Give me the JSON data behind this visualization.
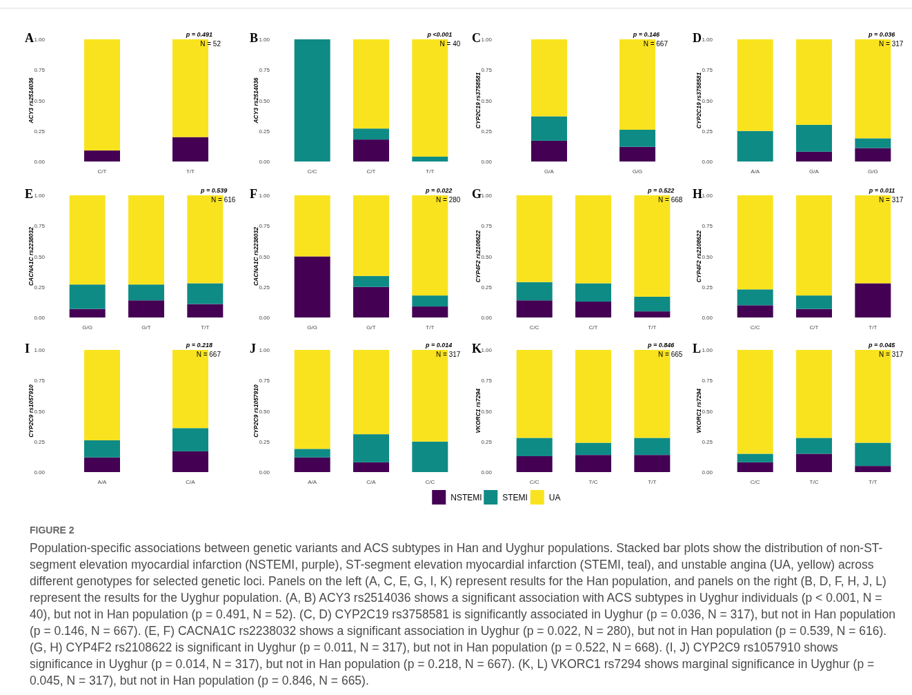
{
  "chart_data": [
    {
      "type": "bar",
      "title": "A",
      "ylabel": "ACY3 rs2514036",
      "categories": [
        "C/T",
        "T/T"
      ],
      "stacked": true,
      "ylim": [
        0,
        1
      ],
      "yticks": [
        {
          "value": 0,
          "label": "0.00"
        },
        {
          "value": 0.25,
          "label": "0.25"
        },
        {
          "value": 0.5,
          "label": "0.50"
        },
        {
          "value": 0.75,
          "label": "0.75"
        },
        {
          "value": 1,
          "label": "1.00"
        }
      ],
      "annotations": [
        "p = 0.491",
        "N = 52"
      ],
      "series": [
        {
          "color": "#440154",
          "values": [
            0.09,
            0.2
          ]
        },
        {
          "color": "#0f8b86",
          "values": [
            0,
            0
          ]
        },
        {
          "color": "#f9e31f",
          "values": [
            0.91,
            0.8
          ]
        }
      ]
    },
    {
      "type": "bar",
      "title": "B",
      "ylabel": "ACY3 rs2514036",
      "categories": [
        "C/C",
        "C/T",
        "T/T"
      ],
      "stacked": true,
      "ylim": [
        0,
        1
      ],
      "yticks": [
        {
          "value": 0,
          "label": "0.00"
        },
        {
          "value": 0.25,
          "label": "0.25"
        },
        {
          "value": 0.5,
          "label": "0.50"
        },
        {
          "value": 0.75,
          "label": "0.75"
        },
        {
          "value": 1,
          "label": "1.00"
        }
      ],
      "annotations": [
        "p <0.001",
        "N = 40"
      ],
      "series": [
        {
          "color": "#440154",
          "values": [
            0,
            0.18,
            0
          ]
        },
        {
          "color": "#0f8b86",
          "values": [
            1,
            0.09,
            0.04
          ]
        },
        {
          "color": "#f9e31f",
          "values": [
            0,
            0.73,
            0.96
          ]
        }
      ]
    },
    {
      "type": "bar",
      "title": "C",
      "ylabel": "CYP2C19 rs3758581",
      "categories": [
        "G/A",
        "G/G"
      ],
      "stacked": true,
      "ylim": [
        0,
        1
      ],
      "yticks": [
        {
          "value": 0,
          "label": "0.00"
        },
        {
          "value": 0.25,
          "label": "0.25"
        },
        {
          "value": 0.5,
          "label": "0.50"
        },
        {
          "value": 0.75,
          "label": "0.75"
        },
        {
          "value": 1,
          "label": "1.00"
        }
      ],
      "annotations": [
        "p = 0.146",
        "N = 667"
      ],
      "series": [
        {
          "color": "#440154",
          "values": [
            0.17,
            0.12
          ]
        },
        {
          "color": "#0f8b86",
          "values": [
            0.2,
            0.14
          ]
        },
        {
          "color": "#f9e31f",
          "values": [
            0.63,
            0.74
          ]
        }
      ]
    },
    {
      "type": "bar",
      "title": "D",
      "ylabel": "CYP2C19 rs3758581",
      "categories": [
        "A/A",
        "G/A",
        "G/G"
      ],
      "stacked": true,
      "ylim": [
        0,
        1
      ],
      "yticks": [
        {
          "value": 0,
          "label": "0.00"
        },
        {
          "value": 0.25,
          "label": "0.25"
        },
        {
          "value": 0.5,
          "label": "0.50"
        },
        {
          "value": 0.75,
          "label": "0.75"
        },
        {
          "value": 1,
          "label": "1.00"
        }
      ],
      "annotations": [
        "p = 0.036",
        "N = 317"
      ],
      "series": [
        {
          "color": "#440154",
          "values": [
            0,
            0.08,
            0.11
          ]
        },
        {
          "color": "#0f8b86",
          "values": [
            0.25,
            0.22,
            0.08
          ]
        },
        {
          "color": "#f9e31f",
          "values": [
            0.75,
            0.7,
            0.81
          ]
        }
      ]
    },
    {
      "type": "bar",
      "title": "E",
      "ylabel": "CACNA1C rs2238032",
      "categories": [
        "G/G",
        "G/T",
        "T/T"
      ],
      "stacked": true,
      "ylim": [
        0,
        1
      ],
      "yticks": [
        {
          "value": 0,
          "label": "0.00"
        },
        {
          "value": 0.25,
          "label": "0.25"
        },
        {
          "value": 0.5,
          "label": "0.50"
        },
        {
          "value": 0.75,
          "label": "0.75"
        },
        {
          "value": 1,
          "label": "1.00"
        }
      ],
      "annotations": [
        "p = 0.539",
        "N = 616"
      ],
      "series": [
        {
          "color": "#440154",
          "values": [
            0.07,
            0.14,
            0.11
          ]
        },
        {
          "color": "#0f8b86",
          "values": [
            0.2,
            0.13,
            0.17
          ]
        },
        {
          "color": "#f9e31f",
          "values": [
            0.73,
            0.73,
            0.72
          ]
        }
      ]
    },
    {
      "type": "bar",
      "title": "F",
      "ylabel": "CACNA1C rs2238032",
      "categories": [
        "G/G",
        "G/T",
        "T/T"
      ],
      "stacked": true,
      "ylim": [
        0,
        1
      ],
      "yticks": [
        {
          "value": 0,
          "label": "0.00"
        },
        {
          "value": 0.25,
          "label": "0.25"
        },
        {
          "value": 0.5,
          "label": "0.50"
        },
        {
          "value": 0.75,
          "label": "0.75"
        },
        {
          "value": 1,
          "label": "1.00"
        }
      ],
      "annotations": [
        "p = 0.022",
        "N = 280"
      ],
      "series": [
        {
          "color": "#440154",
          "values": [
            0.5,
            0.25,
            0.09
          ]
        },
        {
          "color": "#0f8b86",
          "values": [
            0,
            0.09,
            0.09
          ]
        },
        {
          "color": "#f9e31f",
          "values": [
            0.5,
            0.66,
            0.82
          ]
        }
      ]
    },
    {
      "type": "bar",
      "title": "G",
      "ylabel": "CYP4F2 rs2108622",
      "categories": [
        "C/C",
        "C/T",
        "T/T"
      ],
      "stacked": true,
      "ylim": [
        0,
        1
      ],
      "yticks": [
        {
          "value": 0,
          "label": "0.00"
        },
        {
          "value": 0.25,
          "label": "0.25"
        },
        {
          "value": 0.5,
          "label": "0.50"
        },
        {
          "value": 0.75,
          "label": "0.75"
        },
        {
          "value": 1,
          "label": "1.00"
        }
      ],
      "annotations": [
        "p = 0.522",
        "N = 668"
      ],
      "series": [
        {
          "color": "#440154",
          "values": [
            0.14,
            0.13,
            0.05
          ]
        },
        {
          "color": "#0f8b86",
          "values": [
            0.15,
            0.15,
            0.12
          ]
        },
        {
          "color": "#f9e31f",
          "values": [
            0.71,
            0.72,
            0.83
          ]
        }
      ]
    },
    {
      "type": "bar",
      "title": "H",
      "ylabel": "CYP4F2 rs2108622",
      "categories": [
        "C/C",
        "C/T",
        "T/T"
      ],
      "stacked": true,
      "ylim": [
        0,
        1
      ],
      "yticks": [
        {
          "value": 0,
          "label": "0.00"
        },
        {
          "value": 0.25,
          "label": "0.25"
        },
        {
          "value": 0.5,
          "label": "0.50"
        },
        {
          "value": 0.75,
          "label": "0.75"
        },
        {
          "value": 1,
          "label": "1.00"
        }
      ],
      "annotations": [
        "p = 0.011",
        "N = 317"
      ],
      "series": [
        {
          "color": "#440154",
          "values": [
            0.1,
            0.07,
            0.28
          ]
        },
        {
          "color": "#0f8b86",
          "values": [
            0.13,
            0.11,
            0
          ]
        },
        {
          "color": "#f9e31f",
          "values": [
            0.77,
            0.82,
            0.72
          ]
        }
      ]
    },
    {
      "type": "bar",
      "title": "I",
      "ylabel": "CYP2C9 rs1057910",
      "categories": [
        "A/A",
        "C/A"
      ],
      "stacked": true,
      "ylim": [
        0,
        1
      ],
      "yticks": [
        {
          "value": 0,
          "label": "0.00"
        },
        {
          "value": 0.25,
          "label": "0.25"
        },
        {
          "value": 0.5,
          "label": "0.50"
        },
        {
          "value": 0.75,
          "label": "0.75"
        },
        {
          "value": 1,
          "label": "1.00"
        }
      ],
      "annotations": [
        "p = 0.218",
        "N = 667"
      ],
      "series": [
        {
          "color": "#440154",
          "values": [
            0.12,
            0.17
          ]
        },
        {
          "color": "#0f8b86",
          "values": [
            0.14,
            0.19
          ]
        },
        {
          "color": "#f9e31f",
          "values": [
            0.74,
            0.64
          ]
        }
      ]
    },
    {
      "type": "bar",
      "title": "J",
      "ylabel": "CYP2C9 rs1057910",
      "categories": [
        "A/A",
        "C/A",
        "C/C"
      ],
      "stacked": true,
      "legend": "bottom",
      "ylim": [
        0,
        1
      ],
      "yticks": [
        {
          "value": 0,
          "label": "0.00"
        },
        {
          "value": 0.25,
          "label": "0.25"
        },
        {
          "value": 0.5,
          "label": "0.50"
        },
        {
          "value": 0.75,
          "label": "0.75"
        },
        {
          "value": 1,
          "label": "1.00"
        }
      ],
      "annotations": [
        "p = 0.014",
        "N = 317"
      ],
      "series": [
        {
          "name": "NSTEMI",
          "color": "#440154",
          "values": [
            0.12,
            0.08,
            0
          ]
        },
        {
          "name": "STEMI",
          "color": "#0f8b86",
          "values": [
            0.07,
            0.23,
            0.25
          ]
        },
        {
          "name": "UA",
          "color": "#f9e31f",
          "values": [
            0.81,
            0.69,
            0.75
          ]
        }
      ]
    },
    {
      "type": "bar",
      "title": "K",
      "ylabel": "VKORC1 rs7294",
      "categories": [
        "C/C",
        "T/C",
        "T/T"
      ],
      "stacked": true,
      "ylim": [
        0,
        1
      ],
      "yticks": [
        {
          "value": 0,
          "label": "0.00"
        },
        {
          "value": 0.25,
          "label": "0.25"
        },
        {
          "value": 0.5,
          "label": "0.50"
        },
        {
          "value": 0.75,
          "label": "0.75"
        },
        {
          "value": 1,
          "label": "1.00"
        }
      ],
      "annotations": [
        "p = 0.846",
        "N = 665"
      ],
      "series": [
        {
          "color": "#440154",
          "values": [
            0.13,
            0.14,
            0.14
          ]
        },
        {
          "color": "#0f8b86",
          "values": [
            0.15,
            0.1,
            0.14
          ]
        },
        {
          "color": "#f9e31f",
          "values": [
            0.72,
            0.76,
            0.72
          ]
        }
      ]
    },
    {
      "type": "bar",
      "title": "L",
      "ylabel": "VKORC1 rs7294",
      "categories": [
        "C/C",
        "T/C",
        "T/T"
      ],
      "stacked": true,
      "ylim": [
        0,
        1
      ],
      "yticks": [
        {
          "value": 0,
          "label": "0.00"
        },
        {
          "value": 0.25,
          "label": "0.25"
        },
        {
          "value": 0.5,
          "label": "0.50"
        },
        {
          "value": 0.75,
          "label": "0.75"
        },
        {
          "value": 1,
          "label": "1.00"
        }
      ],
      "annotations": [
        "p = 0.045",
        "N = 317"
      ],
      "series": [
        {
          "color": "#440154",
          "values": [
            0.08,
            0.15,
            0.05
          ]
        },
        {
          "color": "#0f8b86",
          "values": [
            0.07,
            0.13,
            0.19
          ]
        },
        {
          "color": "#f9e31f",
          "values": [
            0.85,
            0.72,
            0.76
          ]
        }
      ]
    },
    {
      "type": "other",
      "title": "FIGURE 2",
      "annotations": [
        "Population-specific associations between genetic variants and ACS subtypes in Han and Uyghur populations. Stacked bar plots show the distribution of non-ST-segment elevation myocardial infarction (NSTEMI, purple), ST-segment elevation myocardial infarction (STEMI, teal), and unstable angina (UA, yellow) across different genotypes for selected genetic loci. Panels on the left (A, C, E, G, I, K) represent results for the Han population, and panels on the right (B, D, F, H, J, L) represent the results for the Uyghur population. (A, B) ACY3 rs2514036 shows a significant association with ACS subtypes in Uyghur individuals (p < 0.001, N = 40), but not in Han population (p = 0.491, N = 52). (C, D) CYP2C19 rs3758581 is significantly associated in Uyghur (p = 0.036, N = 317), but not in Han population (p = 0.146, N = 667). (E, F) CACNA1C rs2238032 shows a significant association in Uyghur (p = 0.022, N = 280), but not in Han population (p = 0.539, N = 616). (G, H) CYP4F2 rs2108622 is significant in Uyghur (p = 0.011, N = 317), but not in Han population (p = 0.522, N = 668). (I, J) CYP2C9 rs1057910 shows significance in Uyghur (p = 0.014, N = 317), but not in Han population (p = 0.218, N = 667). (K, L) VKORC1 rs7294 shows marginal significance in Uyghur (p = 0.045, N = 317), but not in Han population (p = 0.846, N = 665)."
      ]
    }
  ]
}
